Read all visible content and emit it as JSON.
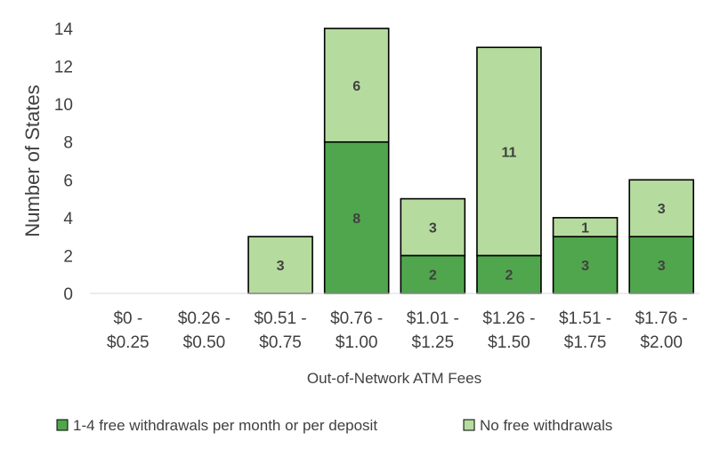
{
  "chart_data": {
    "type": "bar",
    "stacked": true,
    "title": "",
    "xlabel": "Out-of-Network ATM Fees",
    "ylabel": "Number of States",
    "ylim": [
      0,
      14
    ],
    "yticks": [
      0,
      2,
      4,
      6,
      8,
      10,
      12,
      14
    ],
    "grid": false,
    "legend_position": "bottom",
    "categories": [
      [
        "$0 -",
        "$0.25"
      ],
      [
        "$0.26 -",
        "$0.50"
      ],
      [
        "$0.51 -",
        "$0.75"
      ],
      [
        "$0.76 -",
        "$1.00"
      ],
      [
        "$1.01 -",
        "$1.25"
      ],
      [
        "$1.26 -",
        "$1.50"
      ],
      [
        "$1.51 -",
        "$1.75"
      ],
      [
        "$1.76 -",
        "$2.00"
      ]
    ],
    "series": [
      {
        "name": "1-4 free withdrawals per month or per deposit",
        "color": "#50a64c",
        "values": [
          0,
          0,
          0,
          8,
          2,
          2,
          3,
          3
        ]
      },
      {
        "name": "No free withdrawals",
        "color": "#b5dc9e",
        "values": [
          0,
          0,
          3,
          6,
          3,
          11,
          1,
          3
        ]
      }
    ]
  }
}
